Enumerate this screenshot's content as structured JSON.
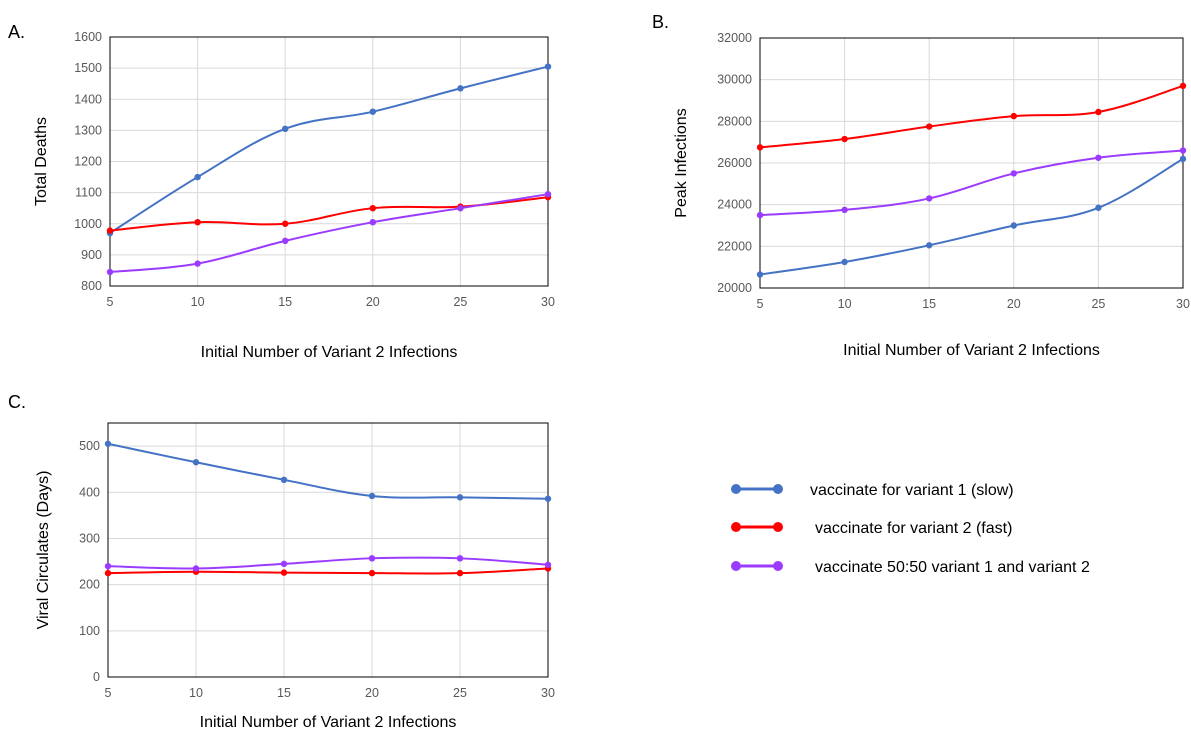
{
  "colors": {
    "series": [
      "#4472C4",
      "#FF0000",
      "#9B3BFF"
    ],
    "grid": "#d9d9d9",
    "tick_text": "#595959"
  },
  "legend": {
    "entries": [
      "vaccinate for variant 1 (slow)",
      "vaccinate for variant 2 (fast)",
      "vaccinate 50:50 variant 1 and variant 2"
    ]
  },
  "chart_data": [
    {
      "type": "line",
      "panel": "A.",
      "xlabel": "Initial Number of Variant 2 Infections",
      "ylabel": "Total Deaths",
      "x": [
        5,
        10,
        15,
        20,
        25,
        30
      ],
      "xlim": [
        5,
        30
      ],
      "ylim": [
        800,
        1600
      ],
      "yticks": [
        800,
        900,
        1000,
        1100,
        1200,
        1300,
        1400,
        1500,
        1600
      ],
      "grid": true,
      "series": [
        {
          "values": [
            970,
            1150,
            1305,
            1360,
            1435,
            1505
          ]
        },
        {
          "values": [
            978,
            1005,
            1000,
            1050,
            1055,
            1085
          ]
        },
        {
          "values": [
            845,
            872,
            945,
            1005,
            1050,
            1095
          ]
        }
      ]
    },
    {
      "type": "line",
      "panel": "B.",
      "xlabel": "Initial Number of Variant 2 Infections",
      "ylabel": "Peak Infections",
      "x": [
        5,
        10,
        15,
        20,
        25,
        30
      ],
      "xlim": [
        5,
        30
      ],
      "ylim": [
        20000,
        32000
      ],
      "yticks": [
        20000,
        22000,
        24000,
        26000,
        28000,
        30000,
        32000
      ],
      "grid": true,
      "series": [
        {
          "values": [
            20650,
            21250,
            22050,
            23000,
            23850,
            26200
          ]
        },
        {
          "values": [
            26750,
            27150,
            27750,
            28250,
            28450,
            29700
          ]
        },
        {
          "values": [
            23500,
            23750,
            24300,
            25500,
            26250,
            26600
          ]
        }
      ]
    },
    {
      "type": "line",
      "panel": "C.",
      "xlabel": "Initial Number of Variant 2 Infections",
      "ylabel": "Viral Circulates (Days)",
      "x": [
        5,
        10,
        15,
        20,
        25,
        30
      ],
      "xlim": [
        5,
        30
      ],
      "ylim": [
        0,
        550
      ],
      "yticks": [
        0,
        100,
        200,
        300,
        400,
        500
      ],
      "grid": true,
      "series": [
        {
          "values": [
            505,
            465,
            427,
            392,
            389,
            386
          ]
        },
        {
          "values": [
            225,
            228,
            226,
            225,
            225,
            235
          ]
        },
        {
          "values": [
            240,
            235,
            245,
            257,
            257,
            243
          ]
        }
      ]
    }
  ]
}
